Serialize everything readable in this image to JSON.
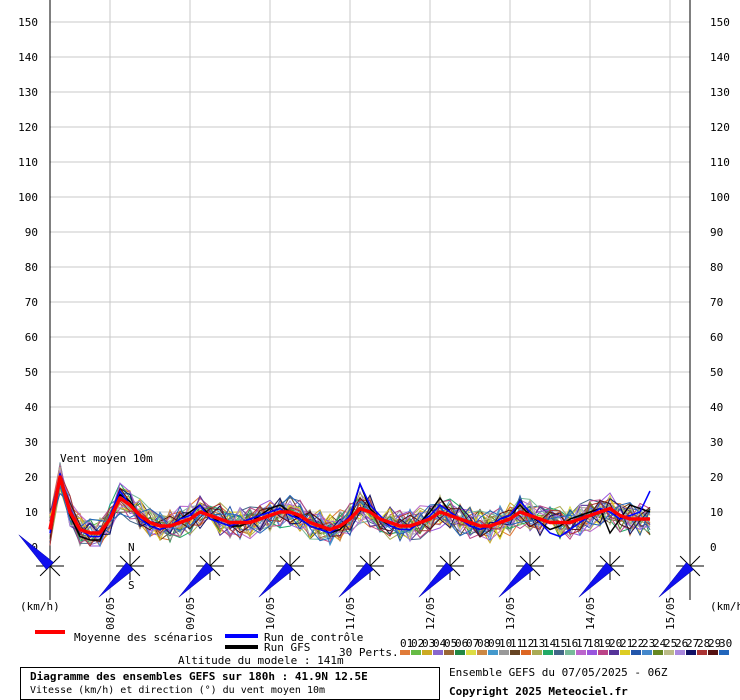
{
  "chart_data": {
    "type": "line",
    "annotation": "Vent moyen 10m",
    "yunit_left": "(km/h)",
    "yunit_right": "(km/h)",
    "ylim": [
      0,
      150
    ],
    "yticks": [
      0,
      10,
      20,
      30,
      40,
      50,
      60,
      70,
      80,
      90,
      100,
      110,
      120,
      130,
      140,
      150
    ],
    "grid": true,
    "x_steps": 61,
    "x_hours_per_step": 3,
    "date_ticks": [
      {
        "label": "08/05",
        "step": 6
      },
      {
        "label": "09/05",
        "step": 14
      },
      {
        "label": "10/05",
        "step": 22
      },
      {
        "label": "11/05",
        "step": 30
      },
      {
        "label": "12/05",
        "step": 38
      },
      {
        "label": "13/05",
        "step": 46
      },
      {
        "label": "14/05",
        "step": 54
      },
      {
        "label": "15/05",
        "step": 62
      }
    ],
    "mean_series": {
      "name": "Moyenne des scénarios",
      "color": "#ff0000",
      "values": [
        5,
        20,
        10,
        5,
        4,
        4,
        8,
        14,
        12,
        9,
        7,
        6,
        6,
        7,
        8,
        10,
        9,
        8,
        7,
        7,
        7,
        8,
        9,
        10,
        10,
        9,
        7,
        6,
        5,
        6,
        8,
        11,
        10,
        8,
        7,
        6,
        6,
        7,
        8,
        10,
        9,
        8,
        7,
        6,
        6,
        7,
        8,
        10,
        9,
        8,
        7,
        7,
        7,
        8,
        9,
        10,
        11,
        9,
        8,
        8,
        8
      ]
    },
    "control_series": {
      "name": "Run de contrôle",
      "color": "#0000ff",
      "values": [
        4,
        21,
        11,
        5,
        3,
        3,
        9,
        16,
        12,
        8,
        6,
        5,
        6,
        8,
        9,
        12,
        8,
        7,
        6,
        7,
        8,
        9,
        10,
        11,
        9,
        8,
        6,
        5,
        4,
        6,
        9,
        18,
        12,
        9,
        6,
        5,
        5,
        7,
        9,
        12,
        10,
        8,
        6,
        5,
        6,
        8,
        9,
        13,
        10,
        7,
        4,
        3,
        5,
        7,
        9,
        11,
        10,
        8,
        9,
        10,
        16
      ]
    },
    "gfs_series": {
      "name": "Run GFS",
      "color": "#000000",
      "values": [
        5,
        20,
        9,
        3,
        2,
        2,
        8,
        15,
        13,
        9,
        6,
        5,
        6,
        8,
        10,
        12,
        9,
        7,
        6,
        6,
        7,
        9,
        11,
        12,
        10,
        8,
        6,
        5,
        4,
        5,
        8,
        18,
        11,
        8,
        6,
        5,
        5,
        7,
        10,
        14,
        10,
        8,
        6,
        5,
        6,
        8,
        9,
        12,
        9,
        7,
        5,
        6,
        8,
        9,
        10,
        11,
        4,
        8,
        12,
        11,
        10
      ]
    },
    "perturbations": {
      "label": "30 Perts.",
      "count": 30,
      "numbers": [
        "01",
        "02",
        "03",
        "04",
        "05",
        "06",
        "07",
        "08",
        "09",
        "10",
        "11",
        "12",
        "13",
        "14",
        "15",
        "16",
        "17",
        "18",
        "19",
        "20",
        "21",
        "22",
        "23",
        "24",
        "25",
        "26",
        "27",
        "28",
        "29",
        "30"
      ],
      "colors": [
        "#e07b39",
        "#66bb44",
        "#ccaa22",
        "#8866cc",
        "#996633",
        "#228844",
        "#dddd44",
        "#cc8844",
        "#4499cc",
        "#999999",
        "#664422",
        "#dd6622",
        "#aaaa55",
        "#22aa66",
        "#446688",
        "#77bb99",
        "#bb66cc",
        "#9955dd",
        "#bb4488",
        "#553399",
        "#ddcc22",
        "#2255aa",
        "#4488cc",
        "#668822",
        "#bbbb88",
        "#aa88dd",
        "#111166",
        "#aa3333",
        "#551111",
        "#2266bb"
      ]
    },
    "wind_direction_deg": [
      315,
      225,
      225,
      225,
      225,
      225,
      225,
      225,
      225
    ],
    "compass": {
      "north": "N",
      "south": "S"
    },
    "altitude_text": "Altitude du modele : 141m",
    "info_title": "Diagramme des ensembles GEFS sur 180h : 41.9N 12.5E",
    "info_subtitle": "Vitesse (km/h) et direction (°) du vent moyen 10m",
    "run_text": "Ensemble GEFS du 07/05/2025 - 06Z",
    "copyright": "Copyright 2025 Meteociel.fr"
  }
}
